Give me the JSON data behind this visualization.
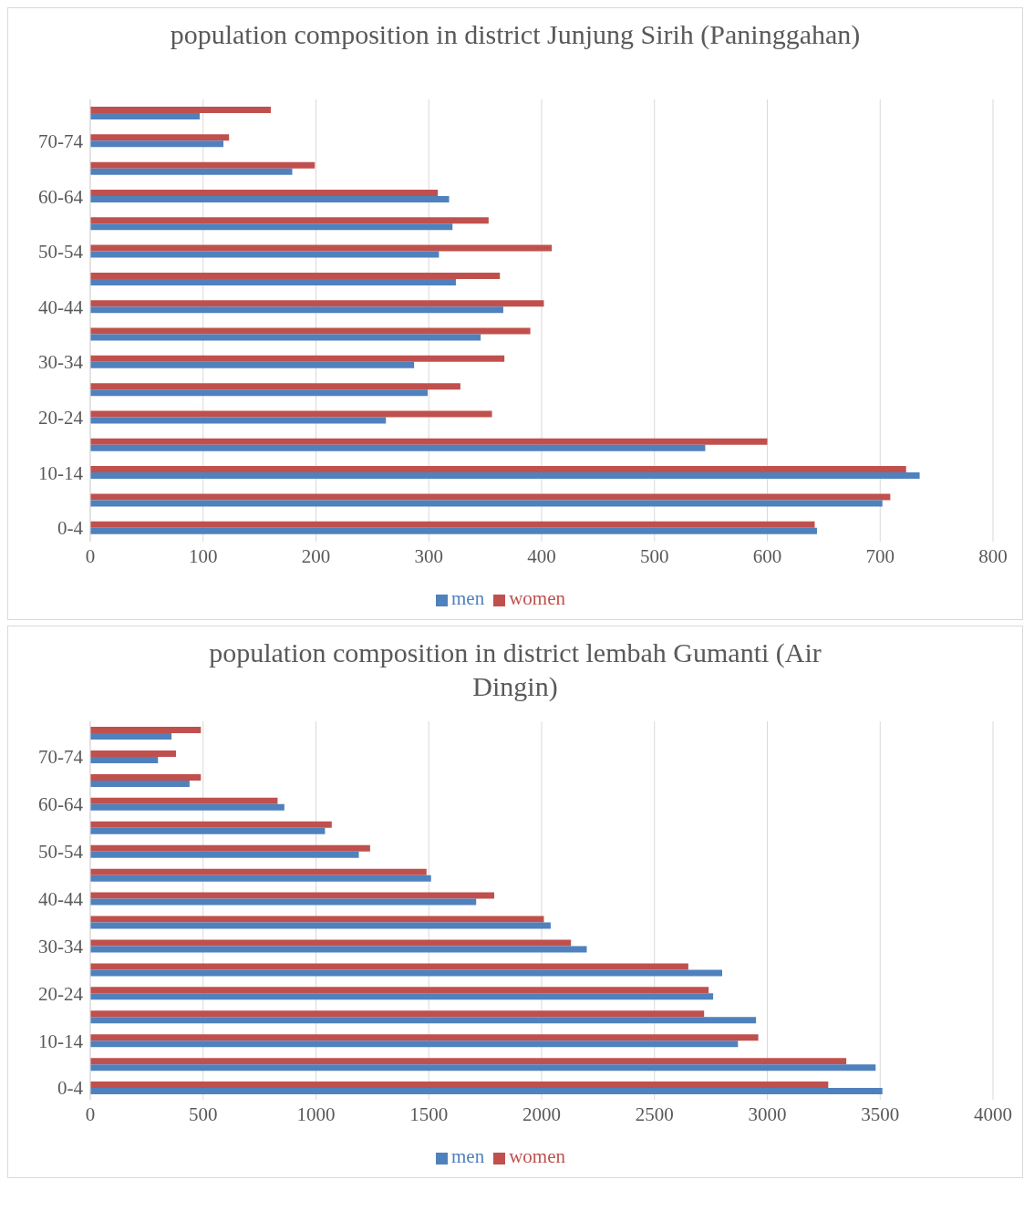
{
  "chart_data": [
    {
      "type": "bar",
      "orientation": "horizontal",
      "title": "population composition in district Junjung Sirih (Paninggahan)",
      "categories": [
        null,
        "70-74",
        null,
        "60-64",
        null,
        "50-54",
        null,
        "40-44",
        null,
        "30-34",
        null,
        "20-24",
        null,
        "10-14",
        null,
        "0-4"
      ],
      "series": [
        {
          "name": "women",
          "color": "#c0504d",
          "values": [
            160,
            123,
            199,
            308,
            353,
            409,
            363,
            402,
            390,
            367,
            328,
            356,
            600,
            723,
            709,
            642
          ]
        },
        {
          "name": "men",
          "color": "#4f81bd",
          "values": [
            97,
            118,
            179,
            318,
            321,
            309,
            324,
            366,
            346,
            287,
            299,
            262,
            545,
            735,
            702,
            644
          ]
        }
      ],
      "xlim": [
        0,
        800
      ],
      "xticks": [
        0,
        100,
        200,
        300,
        400,
        500,
        600,
        700,
        800
      ],
      "grid": "x",
      "legend": "bottom"
    },
    {
      "type": "bar",
      "orientation": "horizontal",
      "title": "population composition in district lembah Gumanti (Air Dingin)",
      "categories": [
        null,
        "70-74",
        null,
        "60-64",
        null,
        "50-54",
        null,
        "40-44",
        null,
        "30-34",
        null,
        "20-24",
        null,
        "10-14",
        null,
        "0-4"
      ],
      "series": [
        {
          "name": "women",
          "color": "#c0504d",
          "values": [
            490,
            380,
            490,
            830,
            1070,
            1240,
            1490,
            1790,
            2010,
            2130,
            2650,
            2740,
            2720,
            2960,
            3350,
            3270
          ]
        },
        {
          "name": "men",
          "color": "#4f81bd",
          "values": [
            360,
            300,
            440,
            860,
            1040,
            1190,
            1510,
            1710,
            2040,
            2200,
            2800,
            2760,
            2950,
            2870,
            3480,
            3510
          ]
        }
      ],
      "xlim": [
        0,
        4000
      ],
      "xticks": [
        0,
        500,
        1000,
        1500,
        2000,
        2500,
        3000,
        3500,
        4000
      ],
      "grid": "x",
      "legend": "bottom"
    }
  ]
}
